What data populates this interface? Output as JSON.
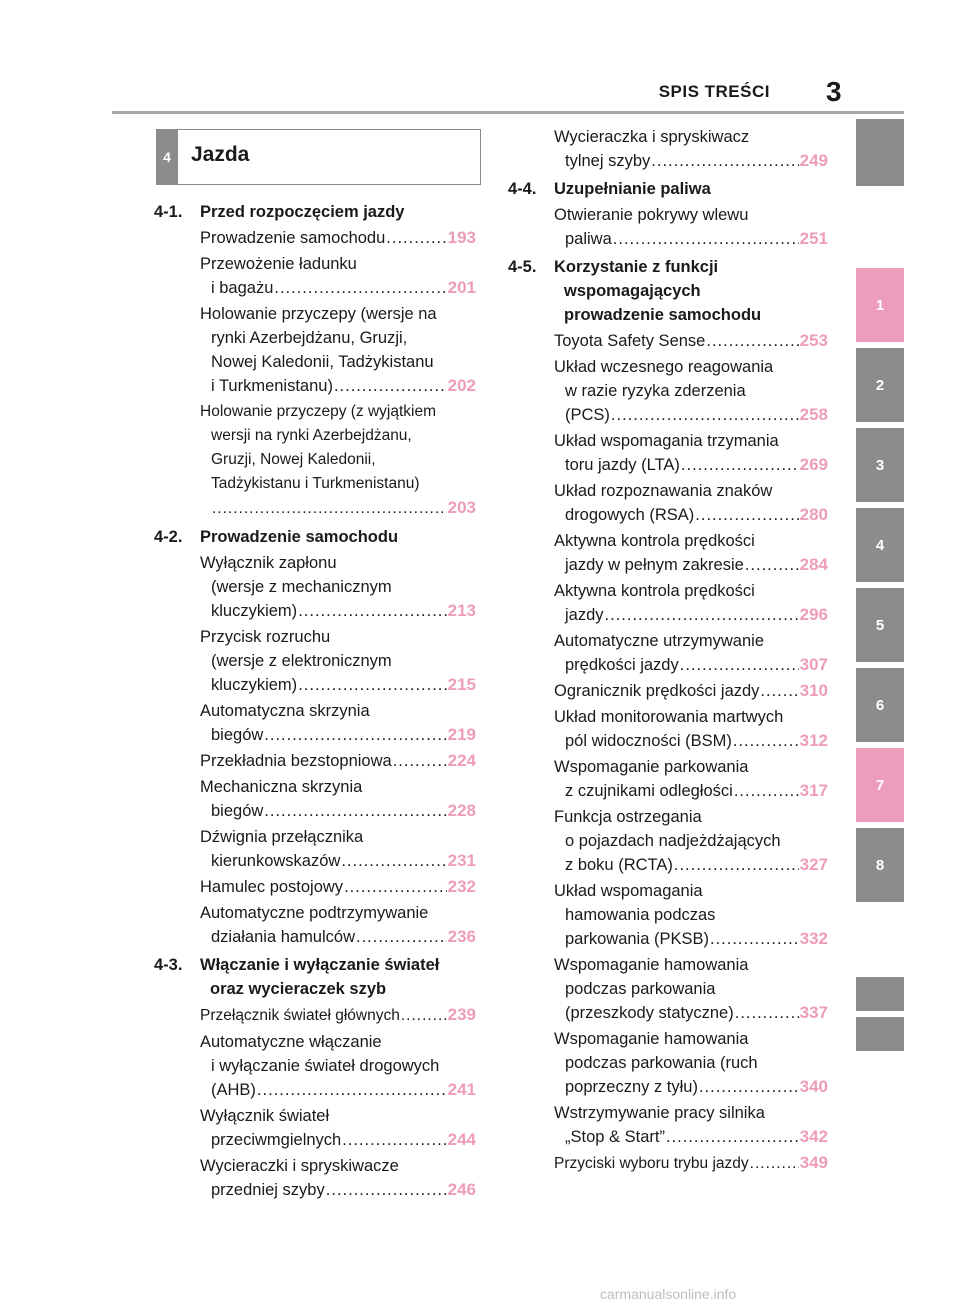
{
  "header": {
    "title": "SPIS TREŚCI",
    "page_number": "3"
  },
  "tabs": [
    {
      "label": "",
      "color": "gray"
    },
    {
      "label": "1",
      "color": "pink"
    },
    {
      "label": "2",
      "color": "gray"
    },
    {
      "label": "3",
      "color": "gray"
    },
    {
      "label": "4",
      "color": "gray"
    },
    {
      "label": "5",
      "color": "gray"
    },
    {
      "label": "6",
      "color": "gray"
    },
    {
      "label": "7",
      "color": "pink"
    },
    {
      "label": "8",
      "color": "gray"
    },
    {
      "label": "",
      "color": "gray"
    },
    {
      "label": "",
      "color": "gray"
    }
  ],
  "section": {
    "number": "4",
    "title": "Jazda"
  },
  "left": {
    "groups": [
      {
        "num": "4-1.",
        "title": [
          "Przed rozpoczęciem jazdy"
        ],
        "entries": [
          {
            "lines": [
              "Prowadzenie samochodu"
            ],
            "page": "193"
          },
          {
            "lines": [
              "Przewożenie ładunku",
              "i bagażu"
            ],
            "page": "201"
          },
          {
            "lines": [
              "Holowanie przyczepy (wersje na",
              "rynki Azerbejdżanu, Gruzji,",
              "Nowej Kaledonii, Tadżykistanu",
              "i Turkmenistanu)"
            ],
            "page": "202"
          },
          {
            "lines": [
              "Holowanie przyczepy (z wyjątkiem",
              "wersji na rynki Azerbejdżanu,",
              "Gruzji, Nowej Kaledonii,",
              "Tadżykistanu i Turkmenistanu)",
              ""
            ],
            "page": "203",
            "tight": true
          }
        ]
      },
      {
        "num": "4-2.",
        "title": [
          "Prowadzenie samochodu"
        ],
        "entries": [
          {
            "lines": [
              "Wyłącznik zapłonu",
              "(wersje z mechanicznym",
              "kluczykiem)"
            ],
            "page": "213"
          },
          {
            "lines": [
              "Przycisk rozruchu",
              "(wersje z elektronicznym",
              "kluczykiem)"
            ],
            "page": "215"
          },
          {
            "lines": [
              "Automatyczna skrzynia",
              "biegów"
            ],
            "page": "219"
          },
          {
            "lines": [
              "Przekładnia bezstopniowa"
            ],
            "page": "224"
          },
          {
            "lines": [
              "Mechaniczna skrzynia",
              "biegów"
            ],
            "page": "228"
          },
          {
            "lines": [
              "Dźwignia przełącznika",
              "kierunkowskazów"
            ],
            "page": "231"
          },
          {
            "lines": [
              "Hamulec postojowy"
            ],
            "page": "232"
          },
          {
            "lines": [
              "Automatyczne podtrzymywanie",
              "działania hamulców"
            ],
            "page": "236"
          }
        ]
      },
      {
        "num": "4-3.",
        "title": [
          "Włączanie i wyłączanie świateł",
          "oraz wycieraczek szyb"
        ],
        "entries": [
          {
            "lines": [
              "Przełącznik świateł głównych"
            ],
            "page": "239",
            "tight": true
          },
          {
            "lines": [
              "Automatyczne włączanie",
              "i wyłączanie świateł drogowych",
              "(AHB)"
            ],
            "page": "241"
          },
          {
            "lines": [
              "Wyłącznik świateł",
              "przeciwmgielnych"
            ],
            "page": "244"
          },
          {
            "lines": [
              "Wycieraczki i spryskiwacze",
              "przedniej szyby"
            ],
            "page": "246"
          }
        ]
      }
    ]
  },
  "right": {
    "groups": [
      {
        "num": "",
        "title": [],
        "entries": [
          {
            "lines": [
              "Wycieraczka i spryskiwacz",
              "tylnej szyby"
            ],
            "page": "249"
          }
        ]
      },
      {
        "num": "4-4.",
        "title": [
          "Uzupełnianie paliwa"
        ],
        "entries": [
          {
            "lines": [
              "Otwieranie pokrywy wlewu",
              "paliwa"
            ],
            "page": "251"
          }
        ]
      },
      {
        "num": "4-5.",
        "title": [
          "Korzystanie z funkcji",
          "wspomagających",
          "prowadzenie samochodu"
        ],
        "entries": [
          {
            "lines": [
              "Toyota Safety Sense"
            ],
            "page": "253"
          },
          {
            "lines": [
              "Układ wczesnego reagowania",
              "w razie ryzyka zderzenia",
              "(PCS)"
            ],
            "page": "258"
          },
          {
            "lines": [
              "Układ wspomagania trzymania",
              "toru jazdy (LTA)"
            ],
            "page": "269"
          },
          {
            "lines": [
              "Układ rozpoznawania znaków",
              "drogowych (RSA)"
            ],
            "page": "280"
          },
          {
            "lines": [
              "Aktywna kontrola prędkości",
              "jazdy w pełnym zakresie"
            ],
            "page": "284"
          },
          {
            "lines": [
              "Aktywna kontrola prędkości",
              "jazdy"
            ],
            "page": "296"
          },
          {
            "lines": [
              "Automatyczne utrzymywanie",
              "prędkości jazdy"
            ],
            "page": "307"
          },
          {
            "lines": [
              "Ogranicznik prędkości jazdy"
            ],
            "page": "310"
          },
          {
            "lines": [
              "Układ monitorowania martwych",
              "pól widoczności (BSM)"
            ],
            "page": "312"
          },
          {
            "lines": [
              "Wspomaganie parkowania",
              "z czujnikami odległości"
            ],
            "page": "317"
          },
          {
            "lines": [
              "Funkcja ostrzegania",
              "o pojazdach nadjeżdżających",
              "z boku (RCTA)"
            ],
            "page": "327"
          },
          {
            "lines": [
              "Układ wspomagania",
              "hamowania podczas",
              "parkowania (PKSB)"
            ],
            "page": "332"
          },
          {
            "lines": [
              "Wspomaganie hamowania",
              "podczas parkowania",
              "(przeszkody statyczne)"
            ],
            "page": "337"
          },
          {
            "lines": [
              "Wspomaganie hamowania",
              "podczas parkowania (ruch",
              "poprzeczny z tyłu)"
            ],
            "page": "340"
          },
          {
            "lines": [
              "Wstrzymywanie pracy silnika",
              "„Stop & Start”"
            ],
            "page": "342"
          },
          {
            "lines": [
              "Przyciski wyboru trybu jazdy"
            ],
            "page": "349",
            "tight": true
          }
        ]
      }
    ]
  },
  "footer": {
    "watermark": "carmanualsonline.info"
  }
}
